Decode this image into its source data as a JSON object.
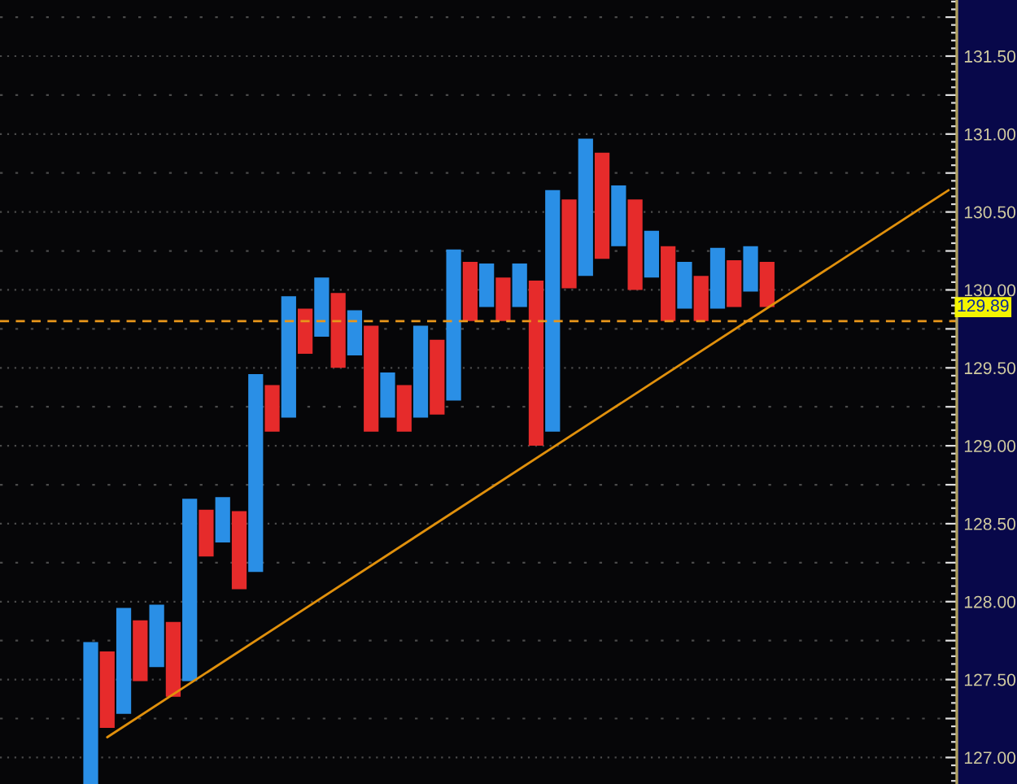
{
  "chart_data": {
    "type": "bar",
    "categories": [
      null,
      null,
      null,
      null,
      null,
      null,
      null,
      null,
      null,
      null,
      null,
      null,
      null,
      null,
      null,
      null,
      null,
      null,
      null,
      null,
      null,
      null,
      null,
      null,
      null,
      null,
      null,
      null,
      null,
      null,
      null,
      null,
      null,
      null,
      null,
      null,
      null,
      null,
      null,
      null,
      null,
      null,
      null,
      null,
      null,
      null,
      null,
      null,
      null,
      null,
      null,
      null,
      null,
      null,
      null,
      null,
      null,
      null
    ],
    "series": [
      {
        "color": "#2a8fe6",
        "base": [
          null,
          null,
          null,
          null,
          null,
          126.83,
          null,
          127.28,
          null,
          127.58,
          null,
          127.49,
          null,
          128.38,
          null,
          128.19,
          null,
          129.18,
          null,
          129.7,
          null,
          129.58,
          null,
          129.18,
          null,
          129.18,
          null,
          129.29,
          null,
          129.89,
          null,
          129.89,
          null,
          129.09,
          null,
          130.09,
          null,
          130.28,
          null,
          130.08,
          null,
          129.88,
          null,
          129.88,
          null,
          129.99,
          null,
          null,
          null,
          null,
          null,
          null,
          null,
          null,
          null,
          null,
          null,
          null
        ],
        "values": [
          null,
          null,
          null,
          null,
          null,
          0.91,
          null,
          0.68,
          null,
          0.4,
          null,
          1.17,
          null,
          0.29,
          null,
          1.27,
          null,
          0.78,
          null,
          0.38,
          null,
          0.29,
          null,
          0.29,
          null,
          0.59,
          null,
          0.97,
          null,
          0.28,
          null,
          0.28,
          null,
          1.55,
          null,
          0.88,
          null,
          0.39,
          null,
          0.3,
          null,
          0.3,
          null,
          0.39,
          null,
          0.29,
          null,
          null,
          null,
          null,
          null,
          null,
          null,
          null,
          null,
          null,
          null,
          null
        ]
      },
      {
        "color": "#e62b2b",
        "base": [
          null,
          null,
          null,
          null,
          null,
          null,
          127.19,
          null,
          127.49,
          null,
          127.39,
          null,
          128.29,
          null,
          128.08,
          null,
          129.09,
          null,
          129.59,
          null,
          129.5,
          null,
          129.09,
          null,
          129.09,
          null,
          129.2,
          null,
          129.8,
          null,
          129.8,
          null,
          129.0,
          null,
          130.01,
          null,
          130.2,
          null,
          130.0,
          null,
          129.8,
          null,
          129.8,
          null,
          129.89,
          null,
          129.89,
          null,
          null,
          null,
          null,
          null,
          null,
          null,
          null,
          null,
          null,
          null
        ],
        "values": [
          null,
          null,
          null,
          null,
          null,
          null,
          0.49,
          null,
          0.39,
          null,
          0.48,
          null,
          0.3,
          null,
          0.5,
          null,
          0.3,
          null,
          0.29,
          null,
          0.48,
          null,
          0.68,
          null,
          0.3,
          null,
          0.48,
          null,
          0.38,
          null,
          0.28,
          null,
          1.06,
          null,
          0.57,
          null,
          0.68,
          null,
          0.58,
          null,
          0.48,
          null,
          0.29,
          null,
          0.3,
          null,
          0.29,
          null,
          null,
          null,
          null,
          null,
          null,
          null,
          null,
          null,
          null,
          null
        ]
      },
      {
        "type": "line",
        "color": "#e0900c",
        "values": [
          null,
          null,
          null,
          null,
          null,
          null,
          127.13,
          null,
          null,
          null,
          null,
          null,
          null,
          null,
          null,
          null,
          null,
          null,
          null,
          null,
          null,
          null,
          null,
          null,
          null,
          null,
          null,
          null,
          null,
          null,
          null,
          null,
          null,
          null,
          null,
          null,
          null,
          null,
          null,
          null,
          null,
          null,
          null,
          null,
          null,
          null,
          null,
          null,
          null,
          null,
          null,
          null,
          null,
          null,
          null,
          null,
          null,
          130.64
        ]
      }
    ],
    "ylim": [
      126.83,
      131.86
    ],
    "yticks": [
      {
        "value": 127.0,
        "label": "127.00"
      },
      {
        "value": 127.25,
        "label": null
      },
      {
        "value": 127.5,
        "label": "127.50"
      },
      {
        "value": 127.75,
        "label": null
      },
      {
        "value": 128.0,
        "label": "128.00"
      },
      {
        "value": 128.25,
        "label": null
      },
      {
        "value": 128.5,
        "label": "128.50"
      },
      {
        "value": 128.75,
        "label": null
      },
      {
        "value": 129.0,
        "label": "129.00"
      },
      {
        "value": 129.25,
        "label": null
      },
      {
        "value": 129.5,
        "label": "129.50"
      },
      {
        "value": 129.75,
        "label": null
      },
      {
        "value": 130.0,
        "label": "130.00"
      },
      {
        "value": 130.25,
        "label": null
      },
      {
        "value": 130.5,
        "label": "130.50"
      },
      {
        "value": 130.75,
        "label": null
      },
      {
        "value": 131.0,
        "label": "131.00"
      },
      {
        "value": 131.25,
        "label": null
      },
      {
        "value": 131.5,
        "label": "131.50"
      },
      {
        "value": 131.75,
        "label": null
      }
    ],
    "ref_lines": [
      {
        "axis": "y",
        "value": 129.8,
        "color": "#e8961a",
        "line_style": "dashed"
      }
    ],
    "annotations": [
      {
        "text": "129.89",
        "y": 129.89
      }
    ],
    "grid": "y",
    "tick_labels": "y"
  }
}
